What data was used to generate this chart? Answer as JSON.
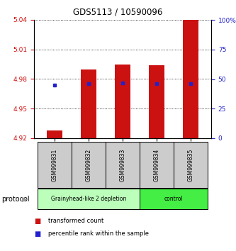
{
  "title": "GDS5113 / 10590096",
  "samples": [
    "GSM999831",
    "GSM999832",
    "GSM999833",
    "GSM999834",
    "GSM999835"
  ],
  "bar_values": [
    4.928,
    4.99,
    4.995,
    4.994,
    5.04
  ],
  "bar_base": 4.92,
  "percentile_values": [
    4.974,
    4.975,
    4.976,
    4.975,
    4.975
  ],
  "ylim": [
    4.92,
    5.04
  ],
  "yticks": [
    4.92,
    4.95,
    4.98,
    5.01,
    5.04
  ],
  "right_ylim": [
    0,
    100
  ],
  "right_yticks": [
    0,
    25,
    50,
    75,
    100
  ],
  "right_yticklabels": [
    "0",
    "25",
    "50",
    "75",
    "100%"
  ],
  "bar_color": "#cc1111",
  "blue_color": "#2222cc",
  "bar_width": 0.45,
  "group0_label": "Grainyhead-like 2 depletion",
  "group0_color": "#bbffbb",
  "group1_label": "control",
  "group1_color": "#44ee44",
  "group_label": "protocol",
  "legend_red_label": "transformed count",
  "legend_blue_label": "percentile rank within the sample",
  "background_color": "#ffffff",
  "ylabel_color": "#cc1111",
  "right_ylabel_color": "#2222cc",
  "label_bg_color": "#cccccc"
}
